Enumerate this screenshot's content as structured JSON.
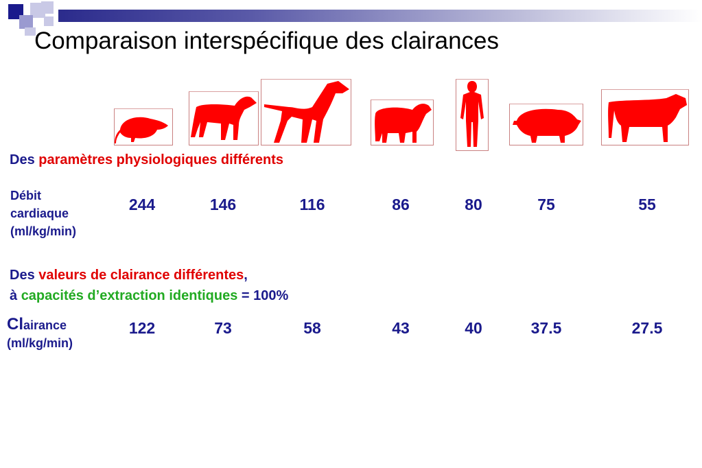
{
  "slide": {
    "title": "Comparaison interspécifique des clairances"
  },
  "colors": {
    "accent_blue": "#1a1a8c",
    "red": "#e00000",
    "green": "#22aa22"
  },
  "animals": [
    {
      "icon": "rat-icon"
    },
    {
      "icon": "dog-icon"
    },
    {
      "icon": "large-dog-icon"
    },
    {
      "icon": "sheep-icon"
    },
    {
      "icon": "human-icon"
    },
    {
      "icon": "pig-icon"
    },
    {
      "icon": "cow-icon"
    }
  ],
  "section1": {
    "prefix": "Des ",
    "highlight": "paramètres physiologiques différents"
  },
  "row1": {
    "label_line1": "Débit",
    "label_line2": "cardiaque",
    "label_line3": "(ml/kg/min)",
    "values": [
      "244",
      "146",
      "116",
      "86",
      "80",
      "75",
      "55"
    ]
  },
  "section2": {
    "line1_prefix": "Des ",
    "line1_highlight": "valeurs de clairance différentes",
    "line1_suffix": ",",
    "line2_prefix": "à ",
    "line2_highlight": "capacités d’extraction identiques",
    "line2_suffix": " = 100%"
  },
  "row2": {
    "label_big": "Cl",
    "label_rest": "airance",
    "label_line2": "(ml/kg/min)",
    "values": [
      "122",
      "73",
      "58",
      "43",
      "40",
      "37.5",
      "27.5"
    ]
  }
}
